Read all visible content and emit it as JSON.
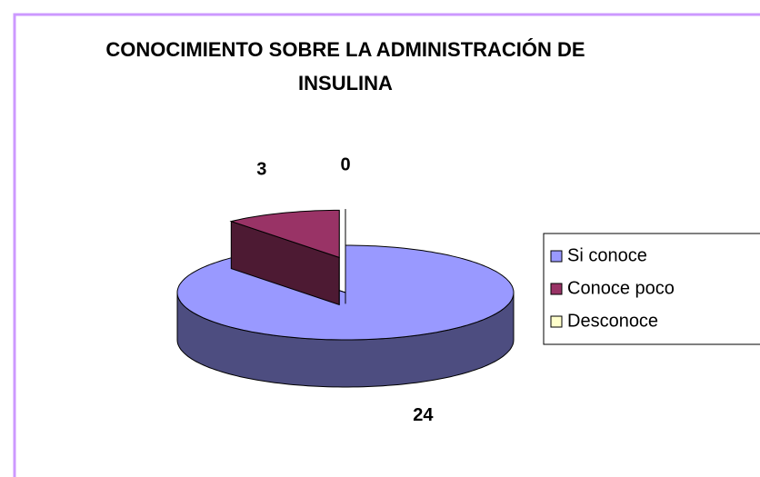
{
  "chart_data": {
    "type": "pie3d",
    "title": "CONOCIMIENTO SOBRE LA ADMINISTRACIÓN DE INSULINA",
    "categories": [
      "Si conoce",
      "Conoce poco",
      "Desconoce"
    ],
    "values": [
      24,
      3,
      0
    ],
    "colors": [
      "#9999ff",
      "#993366",
      "#ffffcc"
    ],
    "legend": "right"
  }
}
